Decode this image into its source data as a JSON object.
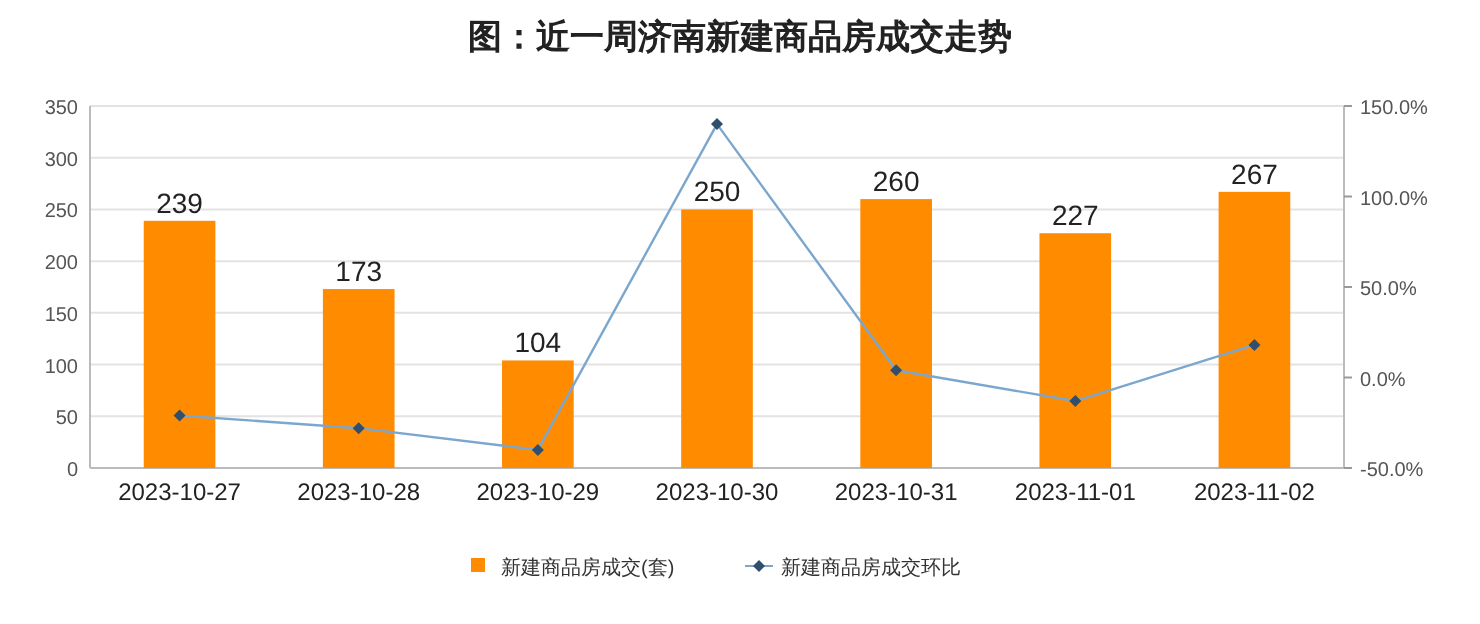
{
  "chart_data": {
    "type": "bar",
    "title": "图：近一周济南新建商品房成交走势",
    "categories": [
      "2023-10-27",
      "2023-10-28",
      "2023-10-29",
      "2023-10-30",
      "2023-10-31",
      "2023-11-01",
      "2023-11-02"
    ],
    "series": [
      {
        "name": "新建商品房成交(套)",
        "color": "#ff8c00",
        "values": [
          239,
          173,
          104,
          250,
          260,
          227,
          267
        ],
        "value_labels": [
          "239",
          "173",
          "104",
          "250",
          "260",
          "227",
          "267"
        ]
      },
      {
        "name": "新建商品房成交环比",
        "type": "line",
        "axis": "y2",
        "color": "#7ba7cf",
        "marker": "diamond",
        "values": [
          -21,
          -28,
          -40,
          140,
          4,
          -13,
          18
        ]
      }
    ],
    "ylim": [
      0,
      350
    ],
    "yticks": [
      0,
      50,
      100,
      150,
      200,
      250,
      300,
      350
    ],
    "y2lim": [
      -50,
      150
    ],
    "y2ticks": [
      {
        "value": -50,
        "label": "-50.0%"
      },
      {
        "value": 0,
        "label": "0.0%"
      },
      {
        "value": 50,
        "label": "50.0%"
      },
      {
        "value": 100,
        "label": "100.0%"
      },
      {
        "value": 150,
        "label": "150.0%"
      }
    ],
    "grid": "y",
    "legend": "bottom"
  }
}
